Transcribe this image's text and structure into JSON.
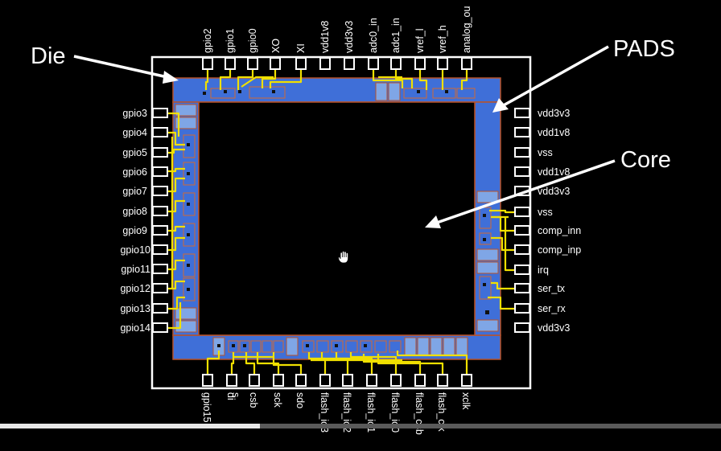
{
  "labels": {
    "die": "Die",
    "pads": "PADS",
    "core": "Core"
  },
  "pins": {
    "top": [
      "gpio2",
      "gpio1",
      "gpio0",
      "XO",
      "XI",
      "vdd1v8",
      "vdd3v3",
      "adc0_in",
      "adc1_in",
      "vref_l",
      "vref_h",
      "analog_ou"
    ],
    "left": [
      "gpio3",
      "gpio4",
      "gpio5",
      "gpio6",
      "gpio7",
      "gpio8",
      "gpio9",
      "gpio10",
      "gpio11",
      "gpio12",
      "gpio13",
      "gpio14"
    ],
    "right": [
      "vdd3v3",
      "vdd1v8",
      "vss",
      "vdd1v8",
      "vdd3v3",
      "vss",
      "comp_inn",
      "comp_inp",
      "irq",
      "ser_tx",
      "ser_rx",
      "vdd3v3"
    ],
    "bottom": [
      "gpio15",
      "di",
      "s",
      "csb",
      "sck",
      "sdo",
      "flash_io3",
      "flash_io2",
      "flash_io1",
      "flash_io0",
      "flash_csb",
      "flash_clk",
      "xclk"
    ]
  },
  "colors": {
    "pad": "#3f6fd8",
    "pad_light": "#7fa6e6",
    "ring": "#b8532a",
    "wire": "#f0e000",
    "outline": "#ffffff"
  },
  "video": {
    "progress": 0.36
  }
}
